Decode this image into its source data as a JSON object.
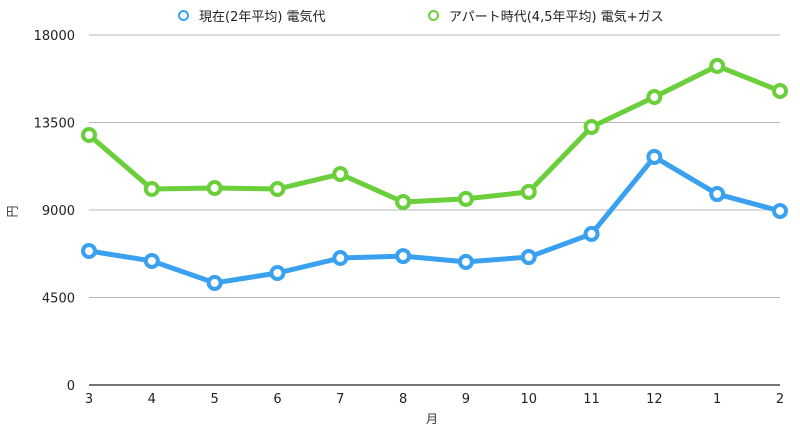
{
  "chart_data": {
    "type": "line",
    "title": "",
    "xlabel": "月",
    "ylabel": "円",
    "categories": [
      "3",
      "4",
      "5",
      "6",
      "7",
      "8",
      "9",
      "10",
      "11",
      "12",
      "1",
      "2"
    ],
    "ylim": [
      0,
      18000
    ],
    "yticks": [
      0,
      4500,
      9000,
      13500,
      18000
    ],
    "grid": true,
    "legend_position": "top",
    "series": [
      {
        "name": "現在(2年平均) 電気代",
        "color": "#3aa0f0",
        "values": [
          6890,
          6380,
          5250,
          5760,
          6530,
          6630,
          6330,
          6580,
          7770,
          11730,
          9820,
          8950
        ]
      },
      {
        "name": "アパート時代(4,5年平均) 電気+ガス",
        "color": "#6acf3a",
        "values": [
          12860,
          10080,
          10130,
          10080,
          10850,
          9410,
          9570,
          9930,
          13270,
          14810,
          16410,
          15120
        ]
      }
    ]
  },
  "legend": {
    "items": [
      {
        "label": "現在(2年平均) 電気代",
        "color": "#3aa0f0"
      },
      {
        "label": "アパート時代(4,5年平均) 電気+ガス",
        "color": "#6acf3a"
      }
    ]
  },
  "axes": {
    "x_title": "月",
    "y_title": "円"
  }
}
